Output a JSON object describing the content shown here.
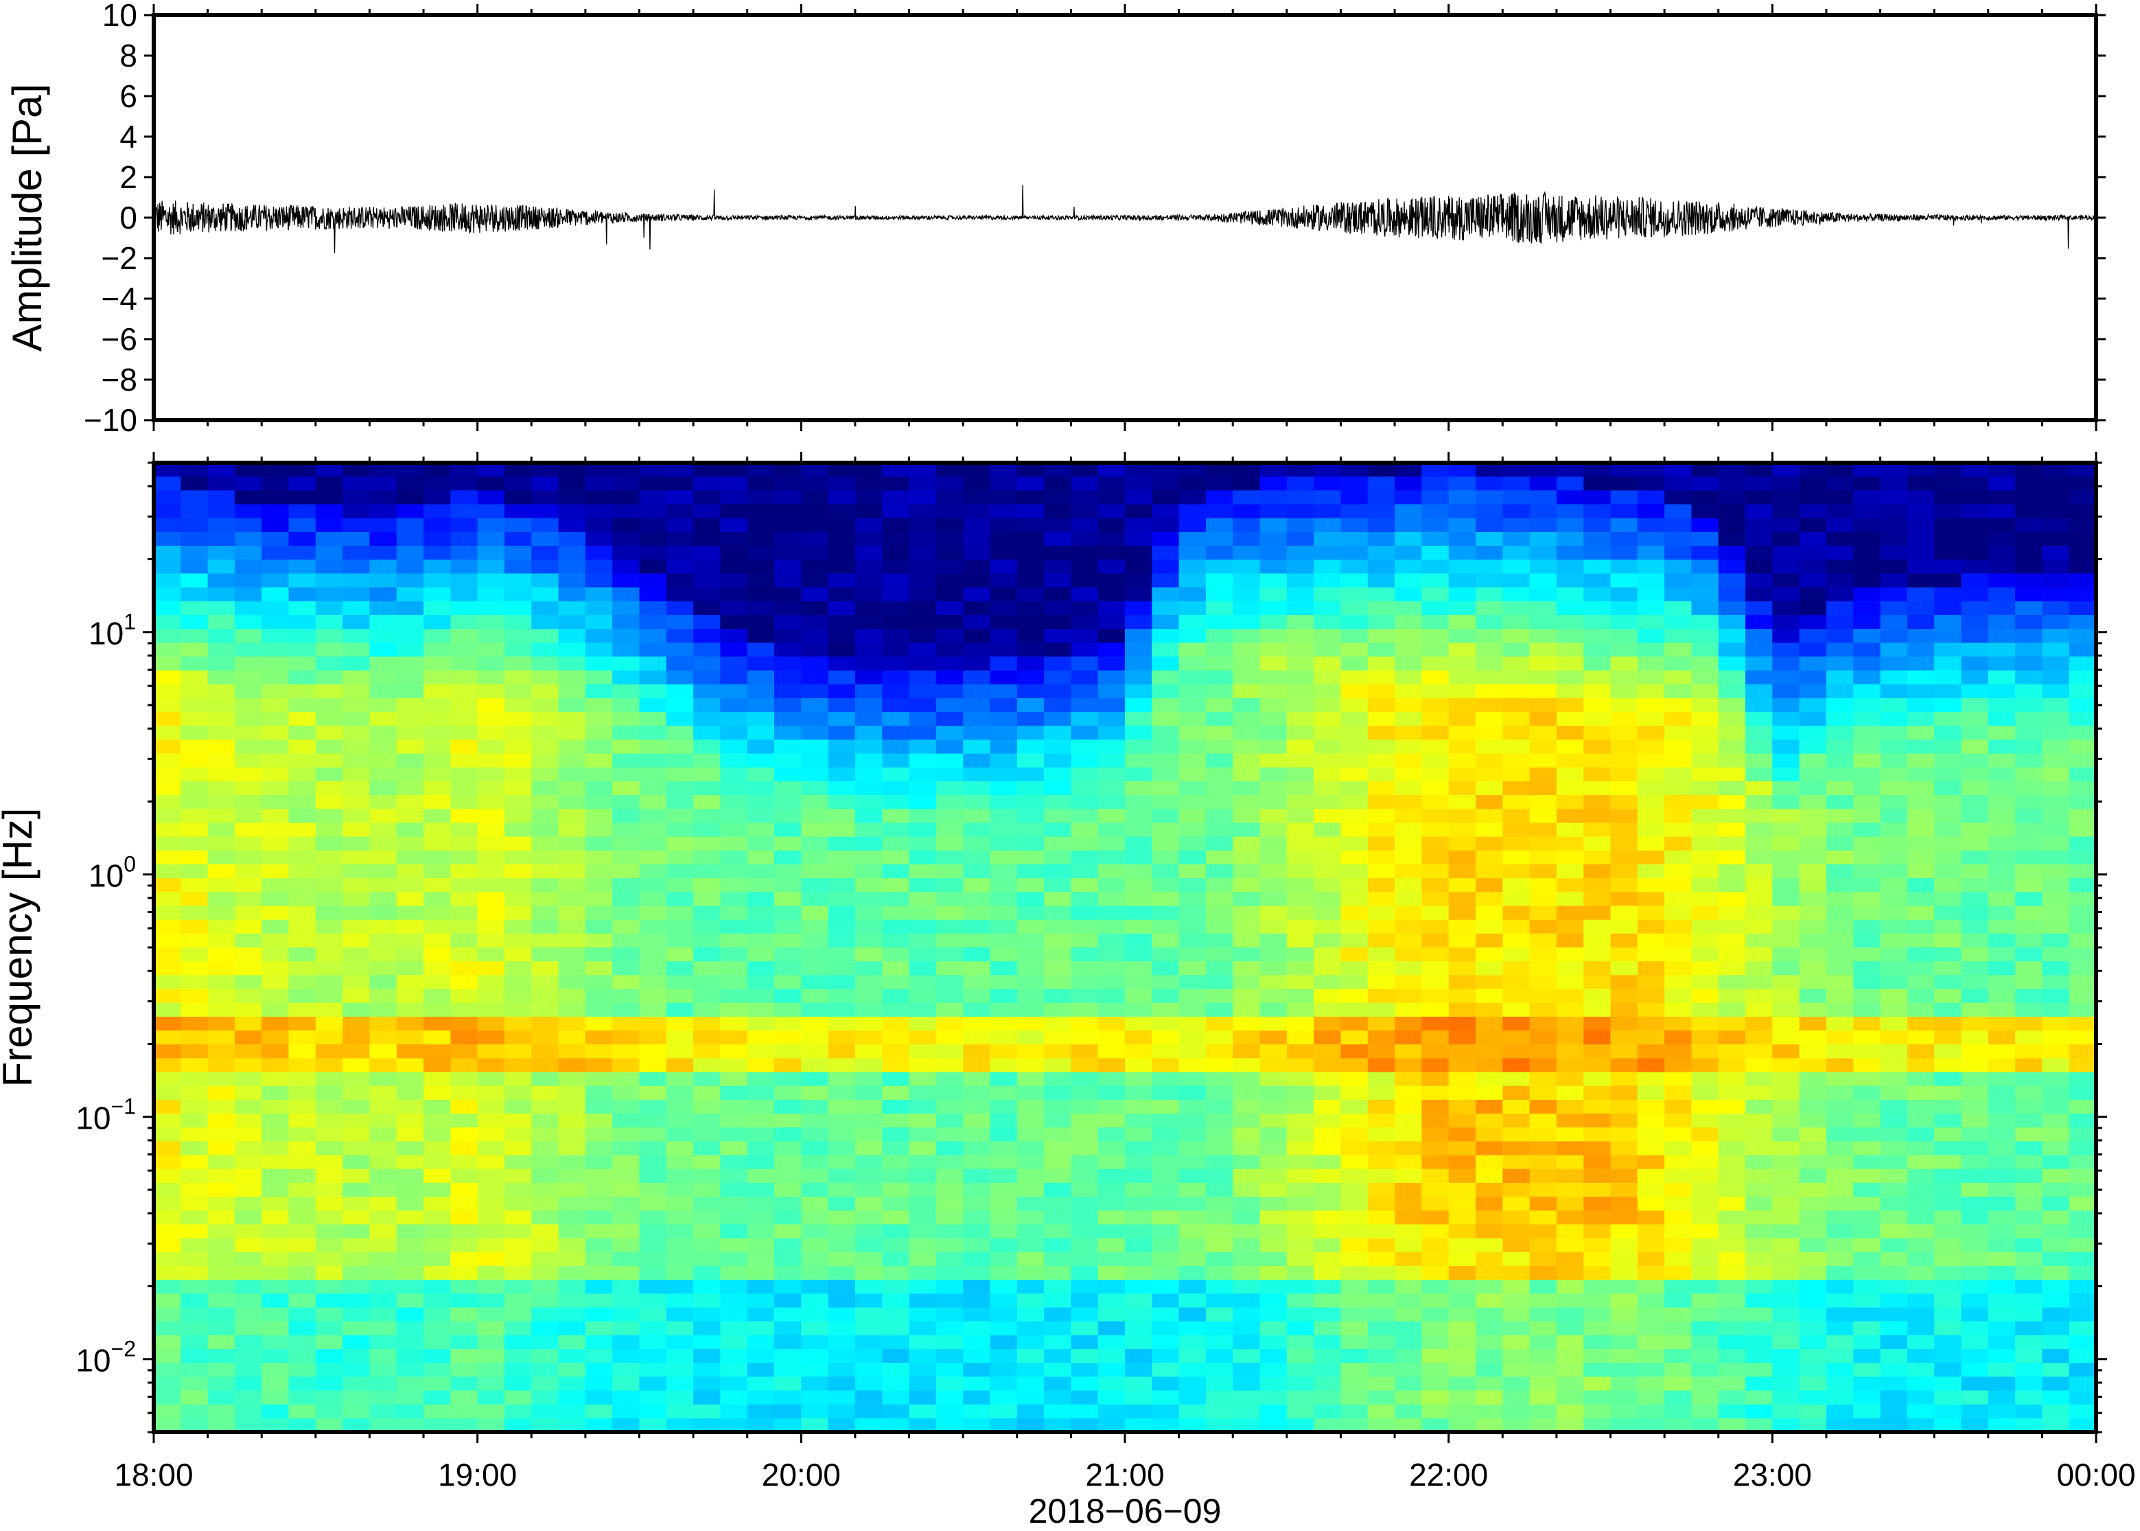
{
  "chart_data": [
    {
      "type": "line",
      "ylabel": "Amplitude [Pa]",
      "xlabel": "",
      "xlim": [
        "18:00",
        "00:00"
      ],
      "ylim": [
        -10,
        10
      ],
      "y_ticks": [
        10,
        8,
        6,
        4,
        2,
        0,
        -2,
        -4,
        -6,
        -8,
        -10
      ],
      "y_tick_labels": [
        "10",
        "8",
        "6",
        "4",
        "2",
        "0",
        "−2",
        "−4",
        "−6",
        "−8",
        "−10"
      ],
      "line_color": "#000000",
      "envelope": {
        "time_hours": [
          0,
          0.25,
          0.5,
          0.75,
          1.0,
          1.25,
          1.5,
          1.75,
          2.0,
          2.25,
          2.5,
          2.75,
          3.0,
          3.25,
          3.5,
          3.75,
          4.0,
          4.25,
          4.5,
          4.75,
          5.0,
          5.25,
          5.5,
          5.75,
          6.0
        ],
        "amplitude_pa": [
          0.9,
          0.7,
          0.6,
          0.55,
          0.8,
          0.5,
          0.2,
          0.12,
          0.1,
          0.1,
          0.1,
          0.1,
          0.12,
          0.15,
          0.5,
          0.9,
          1.1,
          1.3,
          1.1,
          0.9,
          0.5,
          0.2,
          0.15,
          0.12,
          0.12
        ],
        "peak_pa": 1.8
      },
      "grid": false
    },
    {
      "type": "heatmap",
      "ylabel": "Frequency [Hz]",
      "xlabel": "2018−06−09",
      "x_tick_labels": [
        "18:00",
        "19:00",
        "20:00",
        "21:00",
        "22:00",
        "23:00",
        "00:00"
      ],
      "x_tick_hours": [
        0,
        1,
        2,
        3,
        4,
        5,
        6
      ],
      "y_scale": "log",
      "ylim": [
        0.005,
        50
      ],
      "y_tick_values": [
        10,
        1,
        0.1,
        0.01
      ],
      "y_tick_bases": [
        "10",
        "10",
        "10",
        "10"
      ],
      "y_tick_exponents": [
        "1",
        "0",
        "−1",
        "−2"
      ],
      "colormap": [
        "#00007f",
        "#0000ff",
        "#007fff",
        "#00ffff",
        "#7fff7f",
        "#ffff00",
        "#ff7f00",
        "#ff0000",
        "#7f0000"
      ],
      "dominant_power_band_hz": [
        0.15,
        0.25
      ],
      "upper_frequency_edge": {
        "time_hours": [
          0,
          0.25,
          0.5,
          0.75,
          1.0,
          1.25,
          1.5,
          1.75,
          2.0,
          2.25,
          2.5,
          2.75,
          3.0,
          3.25,
          3.5,
          3.75,
          4.0,
          4.25,
          4.5,
          4.75,
          5.0,
          5.25,
          5.5,
          5.75,
          6.0
        ],
        "frequency_hz": [
          45,
          35,
          32,
          30,
          40,
          30,
          18,
          10,
          8,
          7,
          7,
          8,
          9,
          40,
          42,
          45,
          48,
          45,
          40,
          35,
          9,
          14,
          16,
          17,
          17
        ]
      },
      "grid": false
    }
  ]
}
